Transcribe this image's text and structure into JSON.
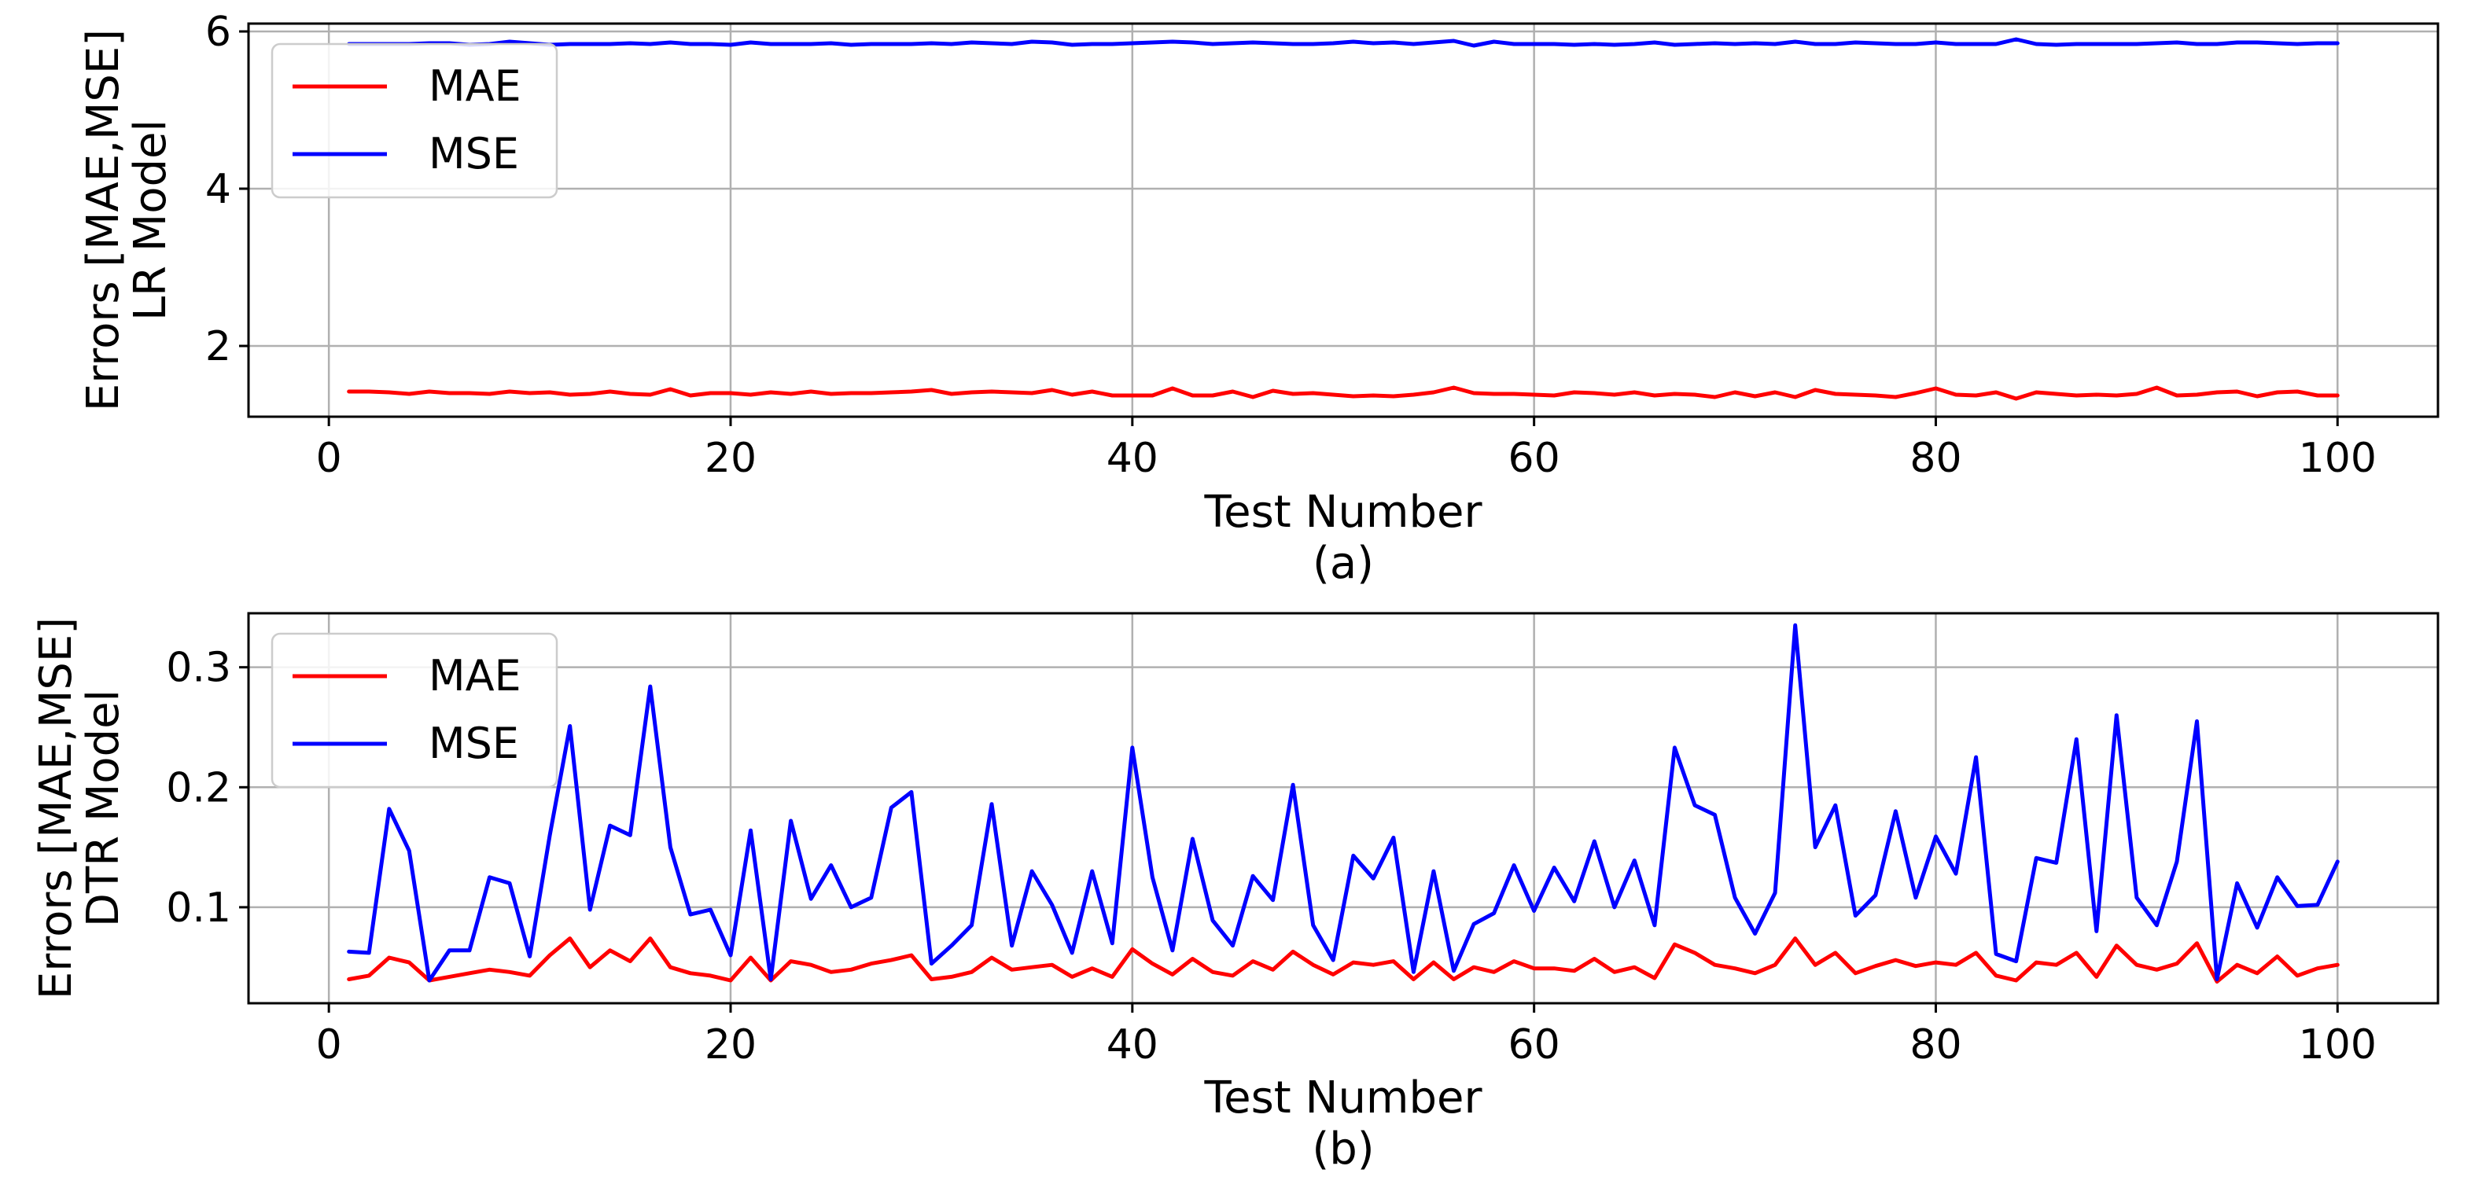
{
  "chart_data": [
    {
      "type": "line",
      "caption": "(a)",
      "xlabel": "Test Number",
      "ylabel_lines": [
        "Errors [MAE,MSE]",
        "LR Model"
      ],
      "xlim": [
        -4,
        105
      ],
      "ylim": [
        1.1,
        6.1
      ],
      "xticks": [
        0,
        20,
        40,
        60,
        80,
        100
      ],
      "yticks": [
        2,
        4,
        6
      ],
      "xtick_labels": [
        "0",
        "20",
        "40",
        "60",
        "80",
        "100"
      ],
      "ytick_labels": [
        "2",
        "4",
        "6"
      ],
      "grid": true,
      "legend_position": "top-left",
      "x_start": 1,
      "series": [
        {
          "name": "MAE",
          "color": "#ff0000",
          "values": [
            1.42,
            1.42,
            1.41,
            1.39,
            1.42,
            1.4,
            1.4,
            1.39,
            1.42,
            1.4,
            1.41,
            1.38,
            1.39,
            1.42,
            1.39,
            1.38,
            1.45,
            1.37,
            1.4,
            1.4,
            1.38,
            1.41,
            1.39,
            1.42,
            1.39,
            1.4,
            1.4,
            1.41,
            1.42,
            1.44,
            1.39,
            1.41,
            1.42,
            1.41,
            1.4,
            1.44,
            1.38,
            1.42,
            1.37,
            1.37,
            1.37,
            1.46,
            1.37,
            1.37,
            1.42,
            1.35,
            1.43,
            1.39,
            1.4,
            1.38,
            1.36,
            1.37,
            1.36,
            1.38,
            1.41,
            1.47,
            1.4,
            1.39,
            1.39,
            1.38,
            1.37,
            1.41,
            1.4,
            1.38,
            1.41,
            1.37,
            1.39,
            1.38,
            1.35,
            1.41,
            1.36,
            1.41,
            1.35,
            1.44,
            1.39,
            1.38,
            1.37,
            1.35,
            1.4,
            1.46,
            1.38,
            1.37,
            1.41,
            1.33,
            1.41,
            1.39,
            1.37,
            1.38,
            1.37,
            1.39,
            1.47,
            1.37,
            1.38,
            1.41,
            1.42,
            1.36,
            1.41,
            1.42,
            1.37,
            1.37
          ]
        },
        {
          "name": "MSE",
          "color": "#0000ff",
          "values": [
            5.84,
            5.84,
            5.84,
            5.84,
            5.85,
            5.85,
            5.83,
            5.84,
            5.87,
            5.85,
            5.83,
            5.84,
            5.84,
            5.84,
            5.85,
            5.84,
            5.86,
            5.84,
            5.84,
            5.83,
            5.86,
            5.84,
            5.84,
            5.84,
            5.85,
            5.83,
            5.84,
            5.84,
            5.84,
            5.85,
            5.84,
            5.86,
            5.85,
            5.84,
            5.87,
            5.86,
            5.83,
            5.84,
            5.84,
            5.85,
            5.86,
            5.87,
            5.86,
            5.84,
            5.85,
            5.86,
            5.85,
            5.84,
            5.84,
            5.85,
            5.87,
            5.85,
            5.86,
            5.84,
            5.86,
            5.88,
            5.82,
            5.87,
            5.84,
            5.84,
            5.84,
            5.83,
            5.84,
            5.83,
            5.84,
            5.86,
            5.83,
            5.84,
            5.85,
            5.84,
            5.85,
            5.84,
            5.87,
            5.84,
            5.84,
            5.86,
            5.85,
            5.84,
            5.84,
            5.86,
            5.84,
            5.84,
            5.84,
            5.9,
            5.84,
            5.83,
            5.84,
            5.84,
            5.84,
            5.84,
            5.85,
            5.86,
            5.84,
            5.84,
            5.86,
            5.86,
            5.85,
            5.84,
            5.85,
            5.85
          ]
        }
      ]
    },
    {
      "type": "line",
      "caption": "(b)",
      "xlabel": "Test Number",
      "ylabel_lines": [
        "Errors [MAE,MSE]",
        "DTR Model"
      ],
      "xlim": [
        -4,
        105
      ],
      "ylim": [
        0.02,
        0.345
      ],
      "xticks": [
        0,
        20,
        40,
        60,
        80,
        100
      ],
      "yticks": [
        0.1,
        0.2,
        0.3
      ],
      "xtick_labels": [
        "0",
        "20",
        "40",
        "60",
        "80",
        "100"
      ],
      "ytick_labels": [
        "0.1",
        "0.2",
        "0.3"
      ],
      "grid": true,
      "legend_position": "top-left",
      "x_start": 1,
      "series": [
        {
          "name": "MAE",
          "color": "#ff0000",
          "values": [
            0.04,
            0.043,
            0.058,
            0.054,
            0.039,
            0.042,
            0.045,
            0.048,
            0.046,
            0.043,
            0.06,
            0.074,
            0.05,
            0.064,
            0.055,
            0.074,
            0.05,
            0.045,
            0.043,
            0.039,
            0.058,
            0.039,
            0.055,
            0.052,
            0.046,
            0.048,
            0.053,
            0.056,
            0.06,
            0.04,
            0.042,
            0.046,
            0.058,
            0.048,
            0.05,
            0.052,
            0.042,
            0.049,
            0.042,
            0.065,
            0.053,
            0.044,
            0.057,
            0.046,
            0.043,
            0.055,
            0.048,
            0.063,
            0.052,
            0.044,
            0.054,
            0.052,
            0.055,
            0.04,
            0.054,
            0.04,
            0.05,
            0.046,
            0.055,
            0.049,
            0.049,
            0.047,
            0.057,
            0.046,
            0.05,
            0.041,
            0.069,
            0.062,
            0.052,
            0.049,
            0.045,
            0.052,
            0.074,
            0.052,
            0.062,
            0.045,
            0.051,
            0.056,
            0.051,
            0.054,
            0.052,
            0.062,
            0.043,
            0.039,
            0.054,
            0.052,
            0.062,
            0.042,
            0.068,
            0.052,
            0.048,
            0.053,
            0.07,
            0.038,
            0.052,
            0.045,
            0.059,
            0.043,
            0.049,
            0.052
          ]
        },
        {
          "name": "MSE",
          "color": "#0000ff",
          "values": [
            0.063,
            0.062,
            0.182,
            0.147,
            0.039,
            0.064,
            0.064,
            0.125,
            0.12,
            0.059,
            0.16,
            0.251,
            0.098,
            0.168,
            0.16,
            0.284,
            0.15,
            0.094,
            0.098,
            0.06,
            0.164,
            0.04,
            0.172,
            0.107,
            0.135,
            0.1,
            0.108,
            0.183,
            0.196,
            0.053,
            0.068,
            0.085,
            0.186,
            0.068,
            0.13,
            0.102,
            0.062,
            0.13,
            0.07,
            0.233,
            0.125,
            0.064,
            0.157,
            0.089,
            0.068,
            0.126,
            0.106,
            0.202,
            0.085,
            0.056,
            0.143,
            0.124,
            0.158,
            0.046,
            0.13,
            0.047,
            0.086,
            0.095,
            0.135,
            0.097,
            0.133,
            0.105,
            0.155,
            0.1,
            0.139,
            0.085,
            0.233,
            0.185,
            0.177,
            0.108,
            0.078,
            0.112,
            0.335,
            0.15,
            0.185,
            0.093,
            0.11,
            0.18,
            0.108,
            0.159,
            0.128,
            0.225,
            0.061,
            0.055,
            0.141,
            0.137,
            0.24,
            0.08,
            0.26,
            0.108,
            0.085,
            0.138,
            0.255,
            0.04,
            0.12,
            0.083,
            0.125,
            0.101,
            0.102,
            0.138
          ]
        }
      ]
    }
  ]
}
